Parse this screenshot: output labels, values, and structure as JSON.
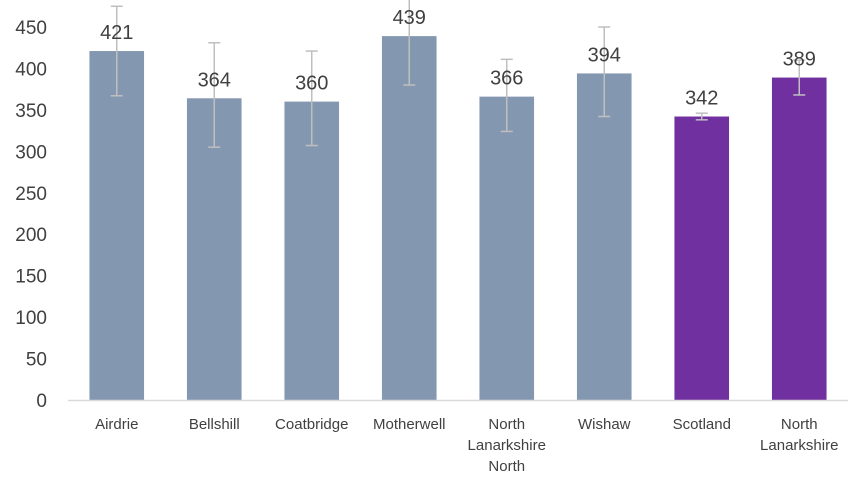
{
  "chart_data": {
    "type": "bar",
    "title": "",
    "xlabel": "",
    "ylabel": "",
    "ylim": [
      0,
      450
    ],
    "yticks": [
      0,
      50,
      100,
      150,
      200,
      250,
      300,
      350,
      400,
      450
    ],
    "categories": [
      [
        "Airdrie"
      ],
      [
        "Bellshill"
      ],
      [
        "Coatbridge"
      ],
      [
        "Motherwell"
      ],
      [
        "North",
        "Lanarkshire",
        "North"
      ],
      [
        "Wishaw"
      ],
      [
        "Scotland"
      ],
      [
        "North",
        "Lanarkshire"
      ]
    ],
    "values": [
      421,
      364,
      360,
      439,
      366,
      394,
      342,
      389
    ],
    "error_low": [
      367,
      305,
      307,
      380,
      324,
      342,
      338,
      368
    ],
    "error_high": [
      475,
      431,
      421,
      498,
      411,
      450,
      346,
      410
    ],
    "bar_colors": [
      "#8497B0",
      "#8497B0",
      "#8497B0",
      "#8497B0",
      "#8497B0",
      "#8497B0",
      "#7030A0",
      "#7030A0"
    ],
    "error_bar_color": "#BFBFBF",
    "axis_color": "#D9D9D9",
    "grid": false,
    "legend": "none"
  }
}
